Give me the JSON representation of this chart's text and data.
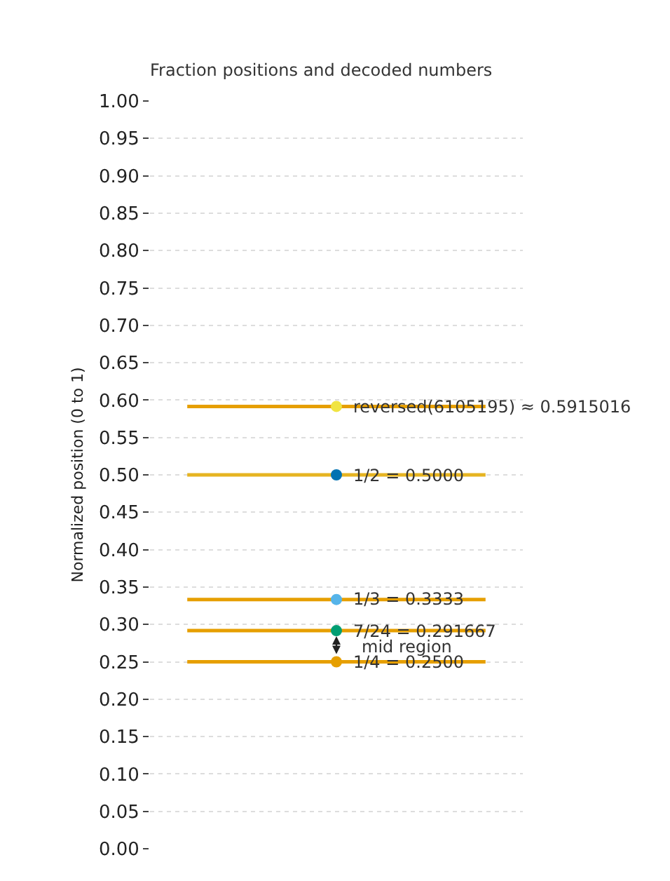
{
  "chart_data": {
    "type": "line",
    "title": "Fraction positions and decoded numbers",
    "ylabel": "Normalized position (0 to 1)",
    "categories": [
      null,
      null,
      null
    ],
    "ylim": [
      0,
      1
    ],
    "yticks": [
      {
        "value": 0,
        "label": "0.00"
      },
      {
        "value": 0.05,
        "label": "0.05"
      },
      {
        "value": 0.1,
        "label": "0.10"
      },
      {
        "value": 0.15,
        "label": "0.15"
      },
      {
        "value": 0.2,
        "label": "0.20"
      },
      {
        "value": 0.25,
        "label": "0.25"
      },
      {
        "value": 0.3,
        "label": "0.30"
      },
      {
        "value": 0.35,
        "label": "0.35"
      },
      {
        "value": 0.4,
        "label": "0.40"
      },
      {
        "value": 0.45,
        "label": "0.45"
      },
      {
        "value": 0.5,
        "label": "0.50"
      },
      {
        "value": 0.55,
        "label": "0.55"
      },
      {
        "value": 0.6,
        "label": "0.60"
      },
      {
        "value": 0.65,
        "label": "0.65"
      },
      {
        "value": 0.7,
        "label": "0.70"
      },
      {
        "value": 0.75,
        "label": "0.75"
      },
      {
        "value": 0.8,
        "label": "0.80"
      },
      {
        "value": 0.85,
        "label": "0.85"
      },
      {
        "value": 0.9,
        "label": "0.90"
      },
      {
        "value": 0.95,
        "label": "0.95"
      },
      {
        "value": 1,
        "label": "1.00"
      }
    ],
    "tick_labels": "y",
    "grid": "y",
    "series": [
      {
        "type": "line",
        "color": "#e69f00",
        "values": [
          0.5915016,
          0.5915016,
          0.5915016
        ]
      },
      {
        "type": "line",
        "color": "#e6b422",
        "values": [
          0.5,
          0.5,
          0.5
        ]
      },
      {
        "type": "line",
        "color": "#e69f00",
        "values": [
          0.3333,
          0.3333,
          0.3333
        ]
      },
      {
        "type": "line",
        "color": "#e69f00",
        "values": [
          0.291667,
          0.291667,
          0.291667
        ]
      },
      {
        "type": "line",
        "color": "#e69f00",
        "values": [
          0.25,
          0.25,
          0.25
        ]
      },
      {
        "type": "scatter",
        "color": "#f0e442",
        "values": [
          null,
          0.5915016,
          null
        ]
      },
      {
        "type": "scatter",
        "color": "#0072b2",
        "values": [
          null,
          0.5,
          null
        ]
      },
      {
        "type": "scatter",
        "color": "#56b4e9",
        "values": [
          null,
          0.3333,
          null
        ]
      },
      {
        "type": "scatter",
        "color": "#009e73",
        "values": [
          null,
          0.291667,
          null
        ]
      },
      {
        "type": "scatter",
        "color": "#e69f00",
        "values": [
          null,
          0.25,
          null
        ]
      }
    ],
    "annotations": [
      {
        "text": "reversed(6105195) ≈ 0.5915016",
        "y": 0.5915016
      },
      {
        "text": "1/2 = 0.5000",
        "y": 0.5
      },
      {
        "text": "1/3 = 0.3333",
        "y": 0.3333
      },
      {
        "text": "7/24 = 0.291667",
        "y": 0.291667
      },
      {
        "text": "1/4 = 0.2500",
        "y": 0.25
      },
      "mid region"
    ]
  }
}
